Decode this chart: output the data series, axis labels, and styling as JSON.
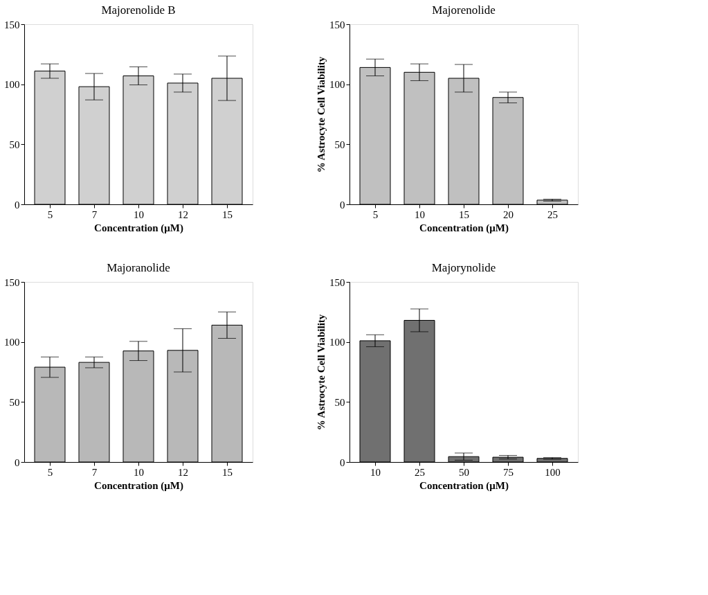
{
  "chart_data": [
    {
      "type": "bar",
      "title": "Majorenolide B",
      "xlabel": "Concentration (μM)",
      "categories": [
        "5",
        "7",
        "10",
        "12",
        "15"
      ],
      "values": [
        111,
        98,
        107,
        101,
        105
      ],
      "errors": [
        6,
        11,
        7.5,
        7.5,
        18.5
      ],
      "color": "#d0d0d0",
      "ylim": [
        0,
        150
      ],
      "yticks": [
        0,
        50,
        100,
        150
      ],
      "grid": false
    },
    {
      "type": "bar",
      "title": "Majorenolide",
      "xlabel": "Concentration (μM)",
      "ylabel": "% Astrocyte Cell Viability",
      "categories": [
        "5",
        "10",
        "15",
        "20",
        "25"
      ],
      "values": [
        114,
        110,
        105,
        89,
        3.5
      ],
      "errors": [
        7,
        7,
        11.5,
        4.5,
        0.8
      ],
      "color": "#c0c0c0",
      "ylim": [
        0,
        150
      ],
      "yticks": [
        0,
        50,
        100,
        150
      ],
      "grid": false
    },
    {
      "type": "bar",
      "title": "Majoranolide",
      "xlabel": "Concentration (μM)",
      "categories": [
        "5",
        "7",
        "10",
        "12",
        "15"
      ],
      "values": [
        79,
        83,
        92.5,
        93,
        114
      ],
      "errors": [
        8.5,
        4.5,
        8,
        18,
        11
      ],
      "color": "#b8b8b8",
      "ylim": [
        0,
        150
      ],
      "yticks": [
        0,
        50,
        100,
        150
      ],
      "grid": false
    },
    {
      "type": "bar",
      "title": "Majorynolide",
      "xlabel": "Concentration (μM)",
      "ylabel": "% Astrocyte Cell Viability",
      "categories": [
        "10",
        "25",
        "50",
        "75",
        "100"
      ],
      "values": [
        101,
        118,
        4.5,
        4,
        3
      ],
      "errors": [
        5,
        9.5,
        3,
        1.5,
        0.7
      ],
      "color": "#707070",
      "ylim": [
        0,
        150
      ],
      "yticks": [
        0,
        50,
        100,
        150
      ],
      "grid": false
    }
  ]
}
